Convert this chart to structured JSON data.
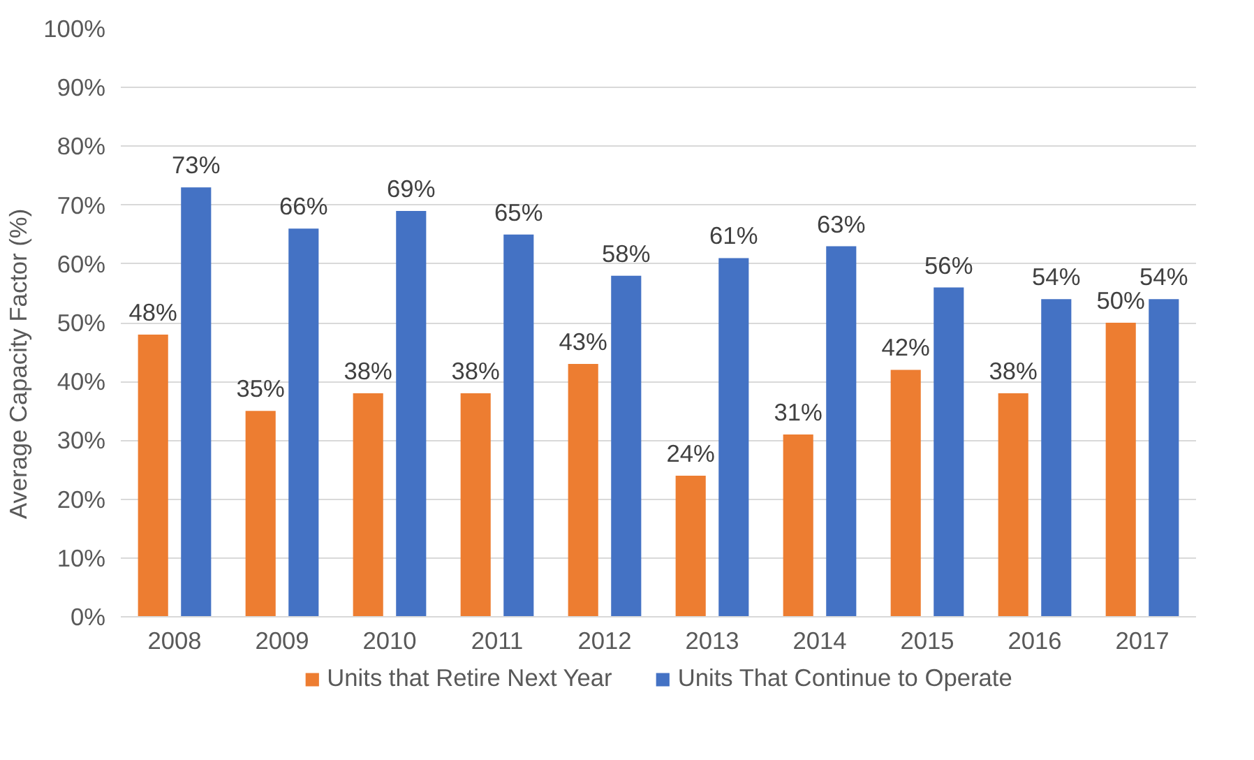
{
  "chart_data": {
    "type": "bar",
    "ylabel": "Average Capacity Factor (%)",
    "categories": [
      "2008",
      "2009",
      "2010",
      "2011",
      "2012",
      "2013",
      "2014",
      "2015",
      "2016",
      "2017"
    ],
    "series": [
      {
        "name": "Units that Retire Next Year",
        "color": "#ed7d31",
        "values": [
          48,
          35,
          38,
          38,
          43,
          24,
          31,
          42,
          38,
          50
        ],
        "value_labels": [
          "48%",
          "35%",
          "38%",
          "38%",
          "43%",
          "24%",
          "31%",
          "42%",
          "38%",
          "50%"
        ]
      },
      {
        "name": "Units That Continue to Operate",
        "color": "#4472c4",
        "values": [
          73,
          66,
          69,
          65,
          58,
          61,
          63,
          56,
          54,
          54
        ],
        "value_labels": [
          "73%",
          "66%",
          "69%",
          "65%",
          "58%",
          "61%",
          "63%",
          "56%",
          "54%",
          "54%"
        ]
      }
    ],
    "ylim": [
      0,
      100
    ],
    "yticks": [
      {
        "value": 0,
        "label": "0%"
      },
      {
        "value": 10,
        "label": "10%"
      },
      {
        "value": 20,
        "label": "20%"
      },
      {
        "value": 30,
        "label": "30%"
      },
      {
        "value": 40,
        "label": "40%"
      },
      {
        "value": 50,
        "label": "50%"
      },
      {
        "value": 60,
        "label": "60%"
      },
      {
        "value": 70,
        "label": "70%"
      },
      {
        "value": 80,
        "label": "80%"
      },
      {
        "value": 90,
        "label": "90%"
      },
      {
        "value": 100,
        "label": "100%"
      }
    ],
    "grid": "y",
    "legend": "bottom"
  }
}
